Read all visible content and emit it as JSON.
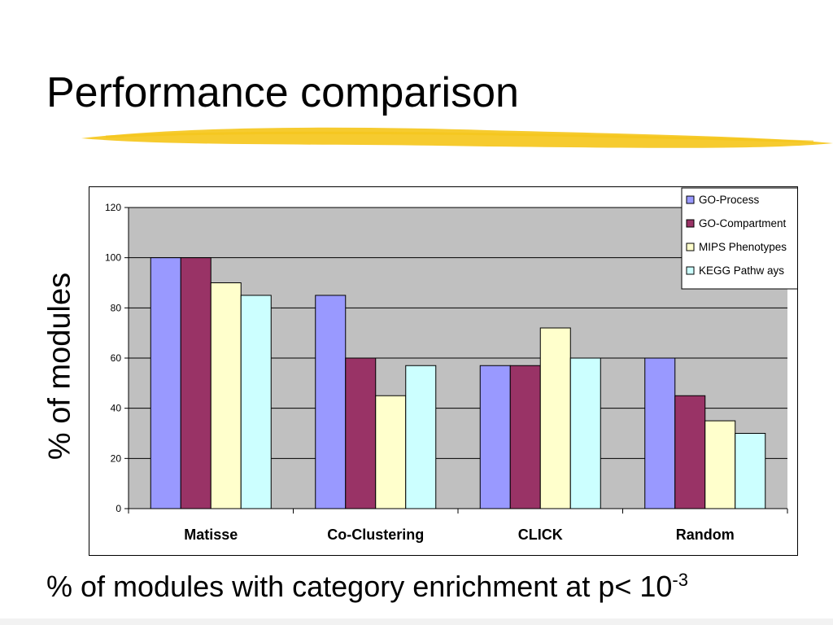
{
  "slide": {
    "title": "Performance comparison",
    "caption_main": "% of modules with category enrichment at p< 10",
    "caption_exponent": "-3",
    "y_axis_label": "% of modules"
  },
  "chart_data": {
    "type": "bar",
    "title": "",
    "xlabel": "",
    "ylabel": "% of modules",
    "categories": [
      "Matisse",
      "Co-Clustering",
      "CLICK",
      "Random"
    ],
    "series": [
      {
        "name": "GO-Process",
        "color": "#9999ff",
        "values": [
          100,
          85,
          57,
          60
        ]
      },
      {
        "name": "GO-Compartment",
        "color": "#993366",
        "values": [
          100,
          60,
          57,
          45
        ]
      },
      {
        "name": "MIPS Phenotypes",
        "color": "#ffffcc",
        "values": [
          90,
          45,
          72,
          35
        ]
      },
      {
        "name": "KEGG Pathw ays",
        "color": "#ccffff",
        "values": [
          85,
          57,
          60,
          30
        ]
      }
    ],
    "ylim": [
      0,
      120
    ],
    "yticks": [
      0,
      20,
      40,
      60,
      80,
      100,
      120
    ],
    "grid": true,
    "plot_background": "#c0c0c0",
    "legend_position": "top-right"
  },
  "theme": {
    "brush_color": "#f5c518"
  }
}
